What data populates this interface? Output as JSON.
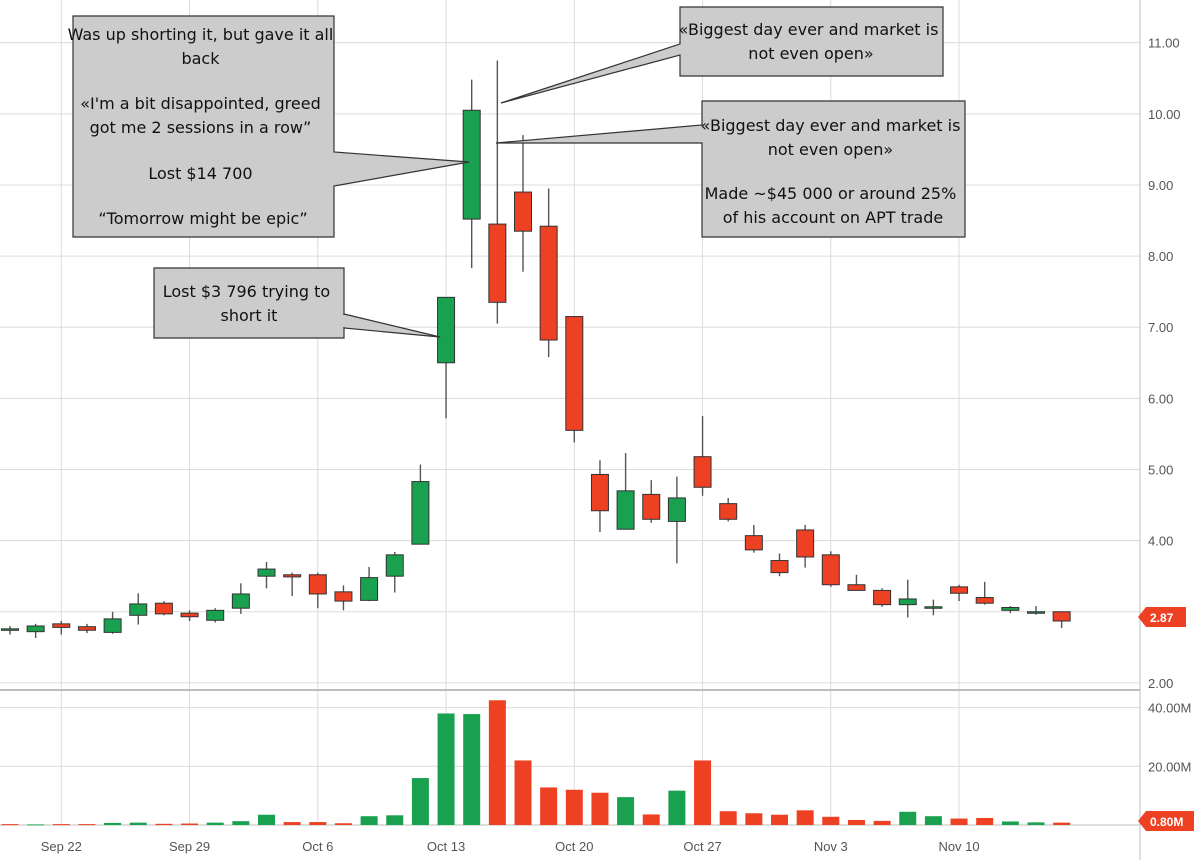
{
  "colors": {
    "up": "#1aa14f",
    "down": "#ee4023",
    "grid": "#dcdcdc",
    "wick": "#555555",
    "callout_fill": "#cccccc",
    "callout_stroke": "#333333",
    "badge": "#ee4023"
  },
  "annotations": [
    {
      "id": "shorting-note",
      "lines": [
        "Was up shorting it, but gave it all",
        "back",
        "",
        "«I'm a bit disappointed, greed",
        "got me 2 sessions in a row”",
        "",
        "Lost $14 700",
        "",
        "“Tomorrow might be epic”"
      ]
    },
    {
      "id": "market-not-open-1",
      "lines": [
        "«Biggest day ever and market is",
        "not even open»"
      ]
    },
    {
      "id": "market-not-open-2",
      "lines": [
        "«Biggest day ever and market is",
        "not even open»",
        "",
        "Made ~$45 000 or around 25%",
        "of his account on APT trade"
      ]
    },
    {
      "id": "lost-short",
      "lines": [
        "Lost $3 796 trying to",
        "short it"
      ]
    }
  ],
  "chart_data": [
    {
      "type": "candlestick",
      "title": "",
      "y_axis_position": "right",
      "ylim": [
        1.9,
        11.6
      ],
      "yticks": [
        "2.00",
        "3.00",
        "4.00",
        "5.00",
        "6.00",
        "7.00",
        "8.00",
        "9.00",
        "10.00",
        "11.00"
      ],
      "ytick_values": [
        2,
        3,
        4,
        5,
        6,
        7,
        8,
        9,
        10,
        11
      ],
      "grid": true,
      "last_price_badge": "2.87",
      "candles": [
        {
          "date": "Sep 20",
          "open": 2.75,
          "high": 2.8,
          "low": 2.68,
          "close": 2.76
        },
        {
          "date": "Sep 21",
          "open": 2.72,
          "high": 2.83,
          "low": 2.63,
          "close": 2.8
        },
        {
          "date": "Sep 22",
          "open": 2.83,
          "high": 2.87,
          "low": 2.68,
          "close": 2.78
        },
        {
          "date": "Sep 23",
          "open": 2.79,
          "high": 2.83,
          "low": 2.7,
          "close": 2.74
        },
        {
          "date": "Sep 26",
          "open": 2.71,
          "high": 3.0,
          "low": 2.69,
          "close": 2.9
        },
        {
          "date": "Sep 27",
          "open": 2.95,
          "high": 3.26,
          "low": 2.82,
          "close": 3.11
        },
        {
          "date": "Sep 28",
          "open": 3.12,
          "high": 3.15,
          "low": 2.95,
          "close": 2.97
        },
        {
          "date": "Sep 29",
          "open": 2.98,
          "high": 3.02,
          "low": 2.87,
          "close": 2.93
        },
        {
          "date": "Sep 30",
          "open": 2.88,
          "high": 3.05,
          "low": 2.85,
          "close": 3.02
        },
        {
          "date": "Oct 3",
          "open": 3.05,
          "high": 3.4,
          "low": 2.97,
          "close": 3.25
        },
        {
          "date": "Oct 4",
          "open": 3.5,
          "high": 3.7,
          "low": 3.33,
          "close": 3.6
        },
        {
          "date": "Oct 5",
          "open": 3.52,
          "high": 3.55,
          "low": 3.22,
          "close": 3.49
        },
        {
          "date": "Oct 6",
          "open": 3.52,
          "high": 3.55,
          "low": 3.05,
          "close": 3.25
        },
        {
          "date": "Oct 7",
          "open": 3.28,
          "high": 3.37,
          "low": 3.02,
          "close": 3.15
        },
        {
          "date": "Oct 10",
          "open": 3.16,
          "high": 3.63,
          "low": 3.15,
          "close": 3.48
        },
        {
          "date": "Oct 11",
          "open": 3.5,
          "high": 3.84,
          "low": 3.27,
          "close": 3.8
        },
        {
          "date": "Oct 12",
          "open": 3.95,
          "high": 5.07,
          "low": 3.95,
          "close": 4.83
        },
        {
          "date": "Oct 13",
          "open": 6.5,
          "high": 7.42,
          "low": 5.72,
          "close": 7.42
        },
        {
          "date": "Oct 14",
          "open": 8.52,
          "high": 10.48,
          "low": 7.83,
          "close": 10.05
        },
        {
          "date": "Oct 17",
          "open": 8.45,
          "high": 10.75,
          "low": 7.05,
          "close": 7.35
        },
        {
          "date": "Oct 18",
          "open": 8.9,
          "high": 9.7,
          "low": 7.78,
          "close": 8.35
        },
        {
          "date": "Oct 19",
          "open": 8.42,
          "high": 8.95,
          "low": 6.58,
          "close": 6.82
        },
        {
          "date": "Oct 20",
          "open": 7.15,
          "high": 7.15,
          "low": 5.38,
          "close": 5.55
        },
        {
          "date": "Oct 21",
          "open": 4.93,
          "high": 5.13,
          "low": 4.12,
          "close": 4.42
        },
        {
          "date": "Oct 24",
          "open": 4.16,
          "high": 5.23,
          "low": 4.16,
          "close": 4.7
        },
        {
          "date": "Oct 25",
          "open": 4.65,
          "high": 4.85,
          "low": 4.25,
          "close": 4.3
        },
        {
          "date": "Oct 26",
          "open": 4.27,
          "high": 4.9,
          "low": 3.68,
          "close": 4.6
        },
        {
          "date": "Oct 27",
          "open": 5.18,
          "high": 5.75,
          "low": 4.63,
          "close": 4.75
        },
        {
          "date": "Oct 28",
          "open": 4.52,
          "high": 4.6,
          "low": 4.27,
          "close": 4.3
        },
        {
          "date": "Oct 31",
          "open": 4.07,
          "high": 4.22,
          "low": 3.83,
          "close": 3.87
        },
        {
          "date": "Nov 1",
          "open": 3.72,
          "high": 3.82,
          "low": 3.5,
          "close": 3.55
        },
        {
          "date": "Nov 2",
          "open": 4.15,
          "high": 4.22,
          "low": 3.62,
          "close": 3.77
        },
        {
          "date": "Nov 3",
          "open": 3.8,
          "high": 3.85,
          "low": 3.35,
          "close": 3.38
        },
        {
          "date": "Nov 4",
          "open": 3.38,
          "high": 3.52,
          "low": 3.3,
          "close": 3.3
        },
        {
          "date": "Nov 7",
          "open": 3.3,
          "high": 3.33,
          "low": 3.07,
          "close": 3.1
        },
        {
          "date": "Nov 8",
          "open": 3.1,
          "high": 3.45,
          "low": 2.92,
          "close": 3.18
        },
        {
          "date": "Nov 9",
          "open": 3.06,
          "high": 3.17,
          "low": 2.95,
          "close": 3.07
        },
        {
          "date": "Nov 10",
          "open": 3.35,
          "high": 3.38,
          "low": 3.15,
          "close": 3.26
        },
        {
          "date": "Nov 11",
          "open": 3.2,
          "high": 3.42,
          "low": 3.1,
          "close": 3.12
        },
        {
          "date": "Nov 14",
          "open": 3.02,
          "high": 3.08,
          "low": 2.98,
          "close": 3.06
        },
        {
          "date": "Nov 15",
          "open": 2.98,
          "high": 3.08,
          "low": 2.96,
          "close": 3.0
        },
        {
          "date": "Nov 16",
          "open": 3.0,
          "high": 3.0,
          "low": 2.77,
          "close": 2.87
        }
      ]
    },
    {
      "type": "bar",
      "title": "",
      "series_label": "volume",
      "ylim": [
        0,
        46
      ],
      "unit": "M",
      "yticks": [
        "20.00M",
        "40.00M"
      ],
      "ytick_values": [
        20,
        40
      ],
      "last_volume_badge": "0.80M",
      "x_tick_labels": [
        "Sep 22",
        "Sep 29",
        "Oct 6",
        "Oct 13",
        "Oct 20",
        "Oct 27",
        "Nov 3",
        "Nov 10"
      ],
      "x_tick_dates": [
        "Sep 22",
        "Sep 29",
        "Oct 6",
        "Oct 13",
        "Oct 20",
        "Oct 27",
        "Nov 3",
        "Nov 10"
      ],
      "values": [
        0.3,
        0.2,
        0.3,
        0.3,
        0.7,
        0.8,
        0.4,
        0.5,
        0.8,
        1.3,
        3.5,
        1.0,
        1.0,
        0.6,
        3.0,
        3.3,
        16.0,
        38.0,
        37.8,
        42.5,
        22.0,
        12.8,
        12.0,
        11.0,
        9.5,
        3.6,
        11.7,
        22.0,
        4.7,
        4.0,
        3.5,
        5.0,
        2.8,
        1.7,
        1.4,
        4.5,
        3.0,
        2.2,
        2.4,
        1.2,
        0.9,
        0.8
      ],
      "directions": [
        "down",
        "up",
        "down",
        "down",
        "up",
        "up",
        "down",
        "down",
        "up",
        "up",
        "up",
        "down",
        "down",
        "down",
        "up",
        "up",
        "up",
        "up",
        "up",
        "down",
        "down",
        "down",
        "down",
        "down",
        "up",
        "down",
        "up",
        "down",
        "down",
        "down",
        "down",
        "down",
        "down",
        "down",
        "down",
        "up",
        "up",
        "down",
        "down",
        "up",
        "up",
        "down"
      ]
    }
  ]
}
